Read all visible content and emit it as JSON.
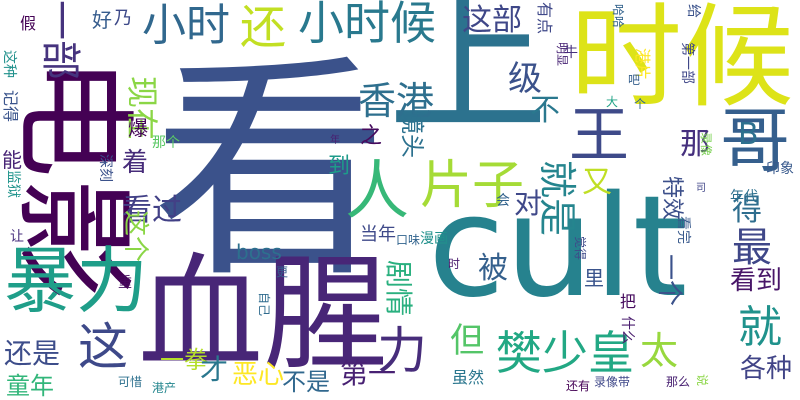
{
  "words": [
    {
      "text": "看",
      "color": "#3b528b"
    },
    {
      "text": "上",
      "color": "#2c728e"
    },
    {
      "text": "时候",
      "color": "#dde318"
    },
    {
      "text": "cult",
      "color": "#26828e"
    },
    {
      "text": "血腥",
      "color": "#482677"
    },
    {
      "text": "电影",
      "color": "#440154"
    },
    {
      "text": "暴力",
      "color": "#1f9e89"
    },
    {
      "text": "人",
      "color": "#37b878"
    },
    {
      "text": "哥",
      "color": "#355f8d"
    },
    {
      "text": "王",
      "color": "#3e4a89"
    },
    {
      "text": "小时候",
      "color": "#29798e"
    },
    {
      "text": "小时",
      "color": "#31688e"
    },
    {
      "text": "还",
      "color": "#c2df23"
    },
    {
      "text": "片子",
      "color": "#a5db36"
    },
    {
      "text": "樊少皇",
      "color": "#22a884"
    },
    {
      "text": "力",
      "color": "#472d7b"
    },
    {
      "text": "这",
      "color": "#3e4989"
    },
    {
      "text": "就",
      "color": "#20928c"
    },
    {
      "text": "太",
      "color": "#98d83e"
    },
    {
      "text": "最",
      "color": "#3f4788"
    },
    {
      "text": "香港",
      "color": "#2e6f8e"
    },
    {
      "text": "一部",
      "color": "#46337e"
    },
    {
      "text": "这部",
      "color": "#3f4788"
    },
    {
      "text": "就是",
      "color": "#25858e"
    },
    {
      "text": "级",
      "color": "#3b528b"
    },
    {
      "text": "不",
      "color": "#2a788e"
    },
    {
      "text": "B",
      "color": "#2d708e"
    },
    {
      "text": "那",
      "color": "#46307e"
    },
    {
      "text": "现在",
      "color": "#8bd646"
    },
    {
      "text": "看过",
      "color": "#424086"
    },
    {
      "text": "着",
      "color": "#472c7a"
    },
    {
      "text": "得",
      "color": "#2e6d8e"
    },
    {
      "text": "剧情",
      "color": "#2ab07f"
    },
    {
      "text": "看到",
      "color": "#481668"
    },
    {
      "text": "第一",
      "color": "#482173"
    },
    {
      "text": "但",
      "color": "#54c568"
    },
    {
      "text": "被",
      "color": "#35608d"
    },
    {
      "text": "又",
      "color": "#c0df25"
    },
    {
      "text": "对",
      "color": "#3f4889"
    },
    {
      "text": "还是",
      "color": "#3d4d8a"
    },
    {
      "text": "各种",
      "color": "#414487"
    },
    {
      "text": "恶心",
      "color": "#fde725"
    },
    {
      "text": "一拳",
      "color": "#b5de2b"
    },
    {
      "text": "童年",
      "color": "#32b67a"
    },
    {
      "text": "不是",
      "color": "#31688e"
    },
    {
      "text": "才",
      "color": "#2a778e"
    },
    {
      "text": "这个",
      "color": "#8bd646"
    },
    {
      "text": "一个",
      "color": "#3b528b"
    },
    {
      "text": "镜头",
      "color": "#2c718e"
    },
    {
      "text": "特效",
      "color": "#3c4f8a"
    },
    {
      "text": "之",
      "color": "#460b5e"
    },
    {
      "text": "到",
      "color": "#1e9b8a"
    },
    {
      "text": "boss",
      "color": "#2d708e"
    },
    {
      "text": "能",
      "color": "#482576"
    },
    {
      "text": "爆",
      "color": "#450559"
    },
    {
      "text": "好",
      "color": "#365c8d"
    },
    {
      "text": "乃",
      "color": "#3e4a89"
    },
    {
      "text": "假",
      "color": "#440154"
    },
    {
      "text": "记得",
      "color": "#3a548c"
    },
    {
      "text": "这种",
      "color": "#21918c"
    },
    {
      "text": "监狱",
      "color": "#1f948c"
    },
    {
      "text": "让",
      "color": "#472f7d"
    },
    {
      "text": "深刻",
      "color": "#3b528b"
    },
    {
      "text": "那个",
      "color": "#5ac864"
    },
    {
      "text": "当年",
      "color": "#3e4989"
    },
    {
      "text": "年代",
      "color": "#2d708e"
    },
    {
      "text": "印象",
      "color": "#38598c"
    },
    {
      "text": "看完",
      "color": "#38598c"
    },
    {
      "text": "漫画",
      "color": "#21918c"
    },
    {
      "text": "口味",
      "color": "#32648e"
    },
    {
      "text": "会",
      "color": "#33638d"
    },
    {
      "text": "重",
      "color": "#460b5e"
    },
    {
      "text": "自己",
      "color": "#2f6b8e"
    },
    {
      "text": "更",
      "color": "#365d8d"
    },
    {
      "text": "可惜",
      "color": "#2d708e"
    },
    {
      "text": "港产",
      "color": "#24868e"
    },
    {
      "text": "时",
      "color": "#481a6c"
    },
    {
      "text": "虽然",
      "color": "#2a768e"
    },
    {
      "text": "觉得",
      "color": "#3e4989"
    },
    {
      "text": "里",
      "color": "#3a548c"
    },
    {
      "text": "把",
      "color": "#460b5e"
    },
    {
      "text": "什么",
      "color": "#481b6d"
    },
    {
      "text": "那么",
      "color": "#482071"
    },
    {
      "text": "还有",
      "color": "#440154"
    },
    {
      "text": "录像带",
      "color": "#3f4889"
    },
    {
      "text": "说",
      "color": "#8bd646"
    },
    {
      "text": "哈哈",
      "color": "#33638d"
    },
    {
      "text": "给",
      "color": "#3b528b"
    },
    {
      "text": "有点",
      "color": "#3f4889"
    },
    {
      "text": "牛",
      "color": "#46327e"
    },
    {
      "text": "明显",
      "color": "#482475"
    },
    {
      "text": "港片",
      "color": "#fde725"
    },
    {
      "text": "吧",
      "color": "#355f8d"
    },
    {
      "text": "大",
      "color": "#20a386"
    },
    {
      "text": "个",
      "color": "#31678e"
    },
    {
      "text": "第一部",
      "color": "#3f4788"
    },
    {
      "text": "录像",
      "color": "#7ad151"
    },
    {
      "text": "司",
      "color": "#404688"
    },
    {
      "text": "年",
      "color": "#481f70"
    }
  ]
}
